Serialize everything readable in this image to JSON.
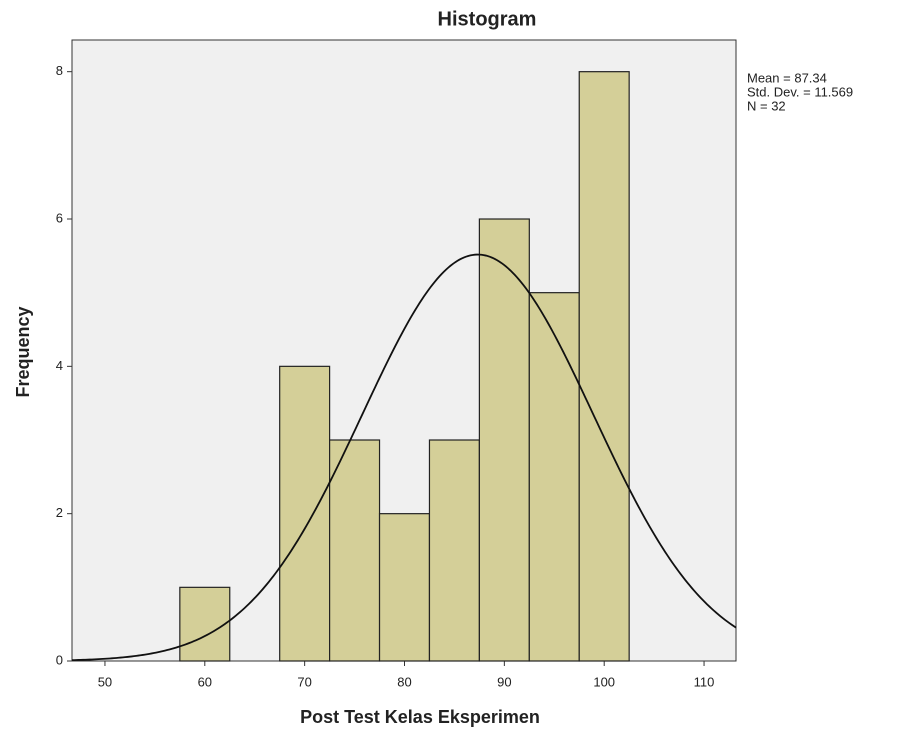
{
  "chart_data": {
    "type": "histogram",
    "title": "Histogram",
    "x_label": "Post Test Kelas Eksperimen",
    "y_label": "Frequency",
    "bins": [
      57.5,
      62.5,
      67.5,
      72.5,
      77.5,
      82.5,
      87.5,
      92.5,
      97.5,
      102.5
    ],
    "counts": [
      1,
      0,
      4,
      3,
      2,
      3,
      6,
      5,
      8
    ],
    "color": "#d4cf98",
    "xlim": [
      46.7,
      113.2
    ],
    "ylim": [
      0,
      8.43
    ],
    "xticks": [
      50,
      60,
      70,
      80,
      90,
      100,
      110
    ],
    "yticks": [
      0,
      2,
      4,
      6,
      8
    ],
    "normal_curve": true,
    "stats": [
      {
        "value": 87.34,
        "label": "Mean = 87.34"
      },
      {
        "value": 11.569,
        "label": "Std. Dev. = 11.569"
      },
      {
        "value": 32,
        "label": "N = 32"
      }
    ]
  }
}
